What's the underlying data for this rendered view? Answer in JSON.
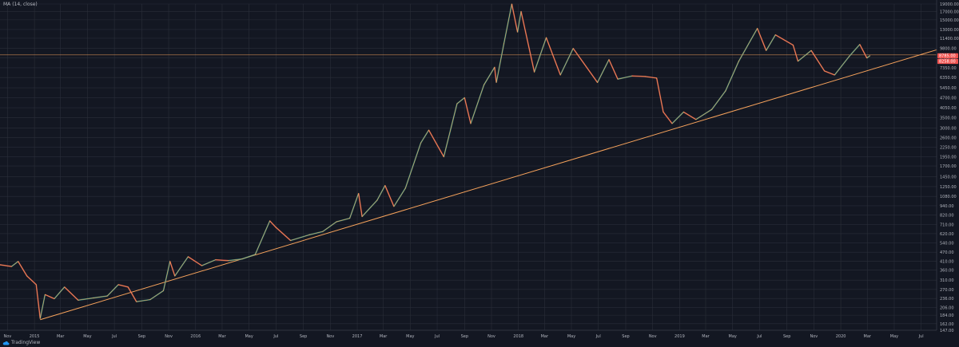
{
  "legend": {
    "text": "MA (14, close)"
  },
  "branding": {
    "text": "TradingView",
    "icon": "tradingview-cloud-icon"
  },
  "colors": {
    "background": "#131722",
    "grid": "#2a2e39",
    "up_candle": "#26a69a",
    "down_candle": "#ef5350",
    "ma_line": "#f7a35c",
    "trendline": "#f7a35c",
    "horizontal_line": "#f7a35c",
    "axis_text": "#b2b5be",
    "price_label_red": "#ef5350"
  },
  "chart_data": {
    "type": "line",
    "title": "",
    "scale": "log",
    "ylim": [
      147,
      19000
    ],
    "xlim": [
      "2014-10-15",
      "2020-08-05"
    ],
    "x_ticks": [
      {
        "label": "Nov",
        "date": "2014-11-01"
      },
      {
        "label": "2015",
        "date": "2015-01-01"
      },
      {
        "label": "Mar",
        "date": "2015-03-01"
      },
      {
        "label": "May",
        "date": "2015-05-01"
      },
      {
        "label": "Jul",
        "date": "2015-07-01"
      },
      {
        "label": "Sep",
        "date": "2015-09-01"
      },
      {
        "label": "Nov",
        "date": "2015-11-01"
      },
      {
        "label": "2016",
        "date": "2016-01-01"
      },
      {
        "label": "Mar",
        "date": "2016-03-01"
      },
      {
        "label": "May",
        "date": "2016-05-01"
      },
      {
        "label": "Jul",
        "date": "2016-07-01"
      },
      {
        "label": "Sep",
        "date": "2016-09-01"
      },
      {
        "label": "Nov",
        "date": "2016-11-01"
      },
      {
        "label": "2017",
        "date": "2017-01-01"
      },
      {
        "label": "Mar",
        "date": "2017-03-01"
      },
      {
        "label": "May",
        "date": "2017-05-01"
      },
      {
        "label": "Jul",
        "date": "2017-07-01"
      },
      {
        "label": "Sep",
        "date": "2017-09-01"
      },
      {
        "label": "Nov",
        "date": "2017-11-01"
      },
      {
        "label": "2018",
        "date": "2018-01-01"
      },
      {
        "label": "Mar",
        "date": "2018-03-01"
      },
      {
        "label": "May",
        "date": "2018-05-01"
      },
      {
        "label": "Jul",
        "date": "2018-07-01"
      },
      {
        "label": "Sep",
        "date": "2018-09-01"
      },
      {
        "label": "Nov",
        "date": "2018-11-01"
      },
      {
        "label": "2019",
        "date": "2019-01-01"
      },
      {
        "label": "Mar",
        "date": "2019-03-01"
      },
      {
        "label": "May",
        "date": "2019-05-01"
      },
      {
        "label": "Jul",
        "date": "2019-07-01"
      },
      {
        "label": "Sep",
        "date": "2019-09-01"
      },
      {
        "label": "Nov",
        "date": "2019-11-01"
      },
      {
        "label": "2020",
        "date": "2020-01-01"
      },
      {
        "label": "Mar",
        "date": "2020-03-01"
      },
      {
        "label": "May",
        "date": "2020-05-01"
      },
      {
        "label": "Jul",
        "date": "2020-07-01"
      }
    ],
    "y_ticks": [
      "19000.00",
      "17000.00",
      "15000.00",
      "13000.00",
      "11400.00",
      "9800.00",
      "8500.00",
      "7350.00",
      "6350.00",
      "5450.00",
      "4700.00",
      "4050.00",
      "3500.00",
      "3000.00",
      "2600.00",
      "2250.00",
      "1950.00",
      "1700.00",
      "1450.00",
      "1250.00",
      "1080.00",
      "940.00",
      "820.00",
      "710.00",
      "620.00",
      "540.00",
      "470.00",
      "410.00",
      "360.00",
      "310.00",
      "270.00",
      "236.00",
      "206.00",
      "184.00",
      "162.00",
      "147.00"
    ],
    "price_labels": [
      {
        "value": 8785.0,
        "text": "8785.00",
        "color": "#ef5350"
      },
      {
        "value": 8258.0,
        "text": "8258.00",
        "color": "#ef5350"
      }
    ],
    "horizontal_line": {
      "value": 8900.0
    },
    "trendline": {
      "start": {
        "date": "2015-01-14",
        "value": 172
      },
      "end": {
        "date": "2020-08-05",
        "value": 9600
      }
    },
    "price_series": [
      {
        "date": "2014-10-15",
        "value": 390
      },
      {
        "date": "2014-11-10",
        "value": 380
      },
      {
        "date": "2014-11-25",
        "value": 410
      },
      {
        "date": "2014-12-15",
        "value": 330
      },
      {
        "date": "2015-01-05",
        "value": 290
      },
      {
        "date": "2015-01-14",
        "value": 175
      },
      {
        "date": "2015-01-25",
        "value": 250
      },
      {
        "date": "2015-02-15",
        "value": 235
      },
      {
        "date": "2015-03-10",
        "value": 280
      },
      {
        "date": "2015-04-10",
        "value": 230
      },
      {
        "date": "2015-05-15",
        "value": 238
      },
      {
        "date": "2015-06-15",
        "value": 245
      },
      {
        "date": "2015-07-10",
        "value": 290
      },
      {
        "date": "2015-08-01",
        "value": 280
      },
      {
        "date": "2015-08-20",
        "value": 225
      },
      {
        "date": "2015-09-20",
        "value": 232
      },
      {
        "date": "2015-10-20",
        "value": 265
      },
      {
        "date": "2015-11-04",
        "value": 410
      },
      {
        "date": "2015-11-15",
        "value": 330
      },
      {
        "date": "2015-12-15",
        "value": 440
      },
      {
        "date": "2016-01-15",
        "value": 385
      },
      {
        "date": "2016-02-15",
        "value": 420
      },
      {
        "date": "2016-03-15",
        "value": 415
      },
      {
        "date": "2016-04-15",
        "value": 425
      },
      {
        "date": "2016-05-15",
        "value": 455
      },
      {
        "date": "2016-06-17",
        "value": 750
      },
      {
        "date": "2016-07-01",
        "value": 680
      },
      {
        "date": "2016-08-03",
        "value": 560
      },
      {
        "date": "2016-09-15",
        "value": 610
      },
      {
        "date": "2016-10-15",
        "value": 640
      },
      {
        "date": "2016-11-15",
        "value": 740
      },
      {
        "date": "2016-12-15",
        "value": 780
      },
      {
        "date": "2017-01-04",
        "value": 1130
      },
      {
        "date": "2017-01-12",
        "value": 800
      },
      {
        "date": "2017-02-15",
        "value": 1020
      },
      {
        "date": "2017-03-05",
        "value": 1270
      },
      {
        "date": "2017-03-25",
        "value": 930
      },
      {
        "date": "2017-04-20",
        "value": 1220
      },
      {
        "date": "2017-05-25",
        "value": 2400
      },
      {
        "date": "2017-06-12",
        "value": 2900
      },
      {
        "date": "2017-07-16",
        "value": 1950
      },
      {
        "date": "2017-08-15",
        "value": 4300
      },
      {
        "date": "2017-09-01",
        "value": 4700
      },
      {
        "date": "2017-09-15",
        "value": 3200
      },
      {
        "date": "2017-10-15",
        "value": 5700
      },
      {
        "date": "2017-11-08",
        "value": 7400
      },
      {
        "date": "2017-11-12",
        "value": 5900
      },
      {
        "date": "2017-11-29",
        "value": 10500
      },
      {
        "date": "2017-12-17",
        "value": 19000
      },
      {
        "date": "2017-12-30",
        "value": 12500
      },
      {
        "date": "2018-01-07",
        "value": 17000
      },
      {
        "date": "2018-02-06",
        "value": 6900
      },
      {
        "date": "2018-03-05",
        "value": 11500
      },
      {
        "date": "2018-04-06",
        "value": 6600
      },
      {
        "date": "2018-05-05",
        "value": 9800
      },
      {
        "date": "2018-06-29",
        "value": 5900
      },
      {
        "date": "2018-07-25",
        "value": 8300
      },
      {
        "date": "2018-08-14",
        "value": 6200
      },
      {
        "date": "2018-09-15",
        "value": 6500
      },
      {
        "date": "2018-10-15",
        "value": 6450
      },
      {
        "date": "2018-11-10",
        "value": 6300
      },
      {
        "date": "2018-11-25",
        "value": 3800
      },
      {
        "date": "2018-12-15",
        "value": 3200
      },
      {
        "date": "2019-01-10",
        "value": 3800
      },
      {
        "date": "2019-02-07",
        "value": 3400
      },
      {
        "date": "2019-03-15",
        "value": 3950
      },
      {
        "date": "2019-04-15",
        "value": 5200
      },
      {
        "date": "2019-05-15",
        "value": 8100
      },
      {
        "date": "2019-06-26",
        "value": 13200
      },
      {
        "date": "2019-07-16",
        "value": 9500
      },
      {
        "date": "2019-08-06",
        "value": 12000
      },
      {
        "date": "2019-09-15",
        "value": 10300
      },
      {
        "date": "2019-09-26",
        "value": 8100
      },
      {
        "date": "2019-10-26",
        "value": 9500
      },
      {
        "date": "2019-11-25",
        "value": 7000
      },
      {
        "date": "2019-12-18",
        "value": 6600
      },
      {
        "date": "2020-01-20",
        "value": 8700
      },
      {
        "date": "2020-02-13",
        "value": 10400
      },
      {
        "date": "2020-02-29",
        "value": 8500
      },
      {
        "date": "2020-03-07",
        "value": 8785
      }
    ]
  }
}
